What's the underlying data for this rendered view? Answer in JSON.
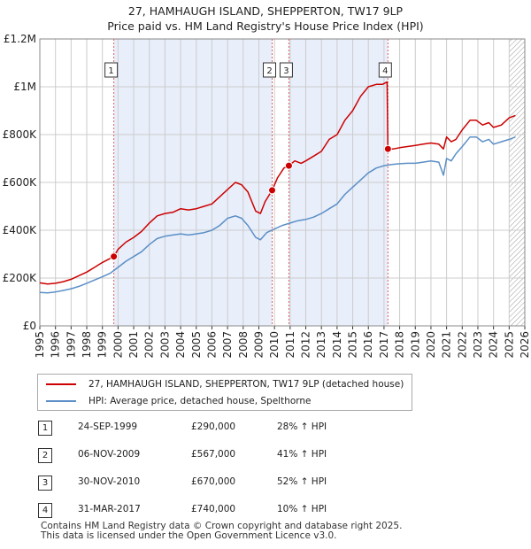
{
  "chart_data": {
    "type": "line",
    "title": "27, HAMHAUGH ISLAND, SHEPPERTON, TW17 9LP",
    "subtitle": "Price paid vs. HM Land Registry's House Price Index (HPI)",
    "xlabel": "",
    "ylabel": "",
    "xlim": [
      1995,
      2026
    ],
    "ylim": [
      0,
      1200000
    ],
    "y_ticks": [
      {
        "value": 0,
        "label": "£0"
      },
      {
        "value": 200000,
        "label": "£200K"
      },
      {
        "value": 400000,
        "label": "£400K"
      },
      {
        "value": 600000,
        "label": "£600K"
      },
      {
        "value": 800000,
        "label": "£800K"
      },
      {
        "value": 1000000,
        "label": "£1M"
      },
      {
        "value": 1200000,
        "label": "£1.2M"
      }
    ],
    "x_ticks": [
      "1995",
      "1996",
      "1997",
      "1998",
      "1999",
      "2000",
      "2001",
      "2002",
      "2003",
      "2004",
      "2005",
      "2006",
      "2007",
      "2008",
      "2009",
      "2010",
      "2011",
      "2012",
      "2013",
      "2014",
      "2015",
      "2016",
      "2017",
      "2018",
      "2019",
      "2020",
      "2021",
      "2022",
      "2023",
      "2024",
      "2025",
      "2026"
    ],
    "shaded_periods": [
      [
        1999.73,
        2009.85
      ],
      [
        2010.92,
        2017.25
      ]
    ],
    "hatch_start": 2025.0,
    "series": [
      {
        "name": "27, HAMHAUGH ISLAND, SHEPPERTON, TW17 9LP (detached house)",
        "color": "#cc0000",
        "x": [
          1995.0,
          1995.5,
          1996.0,
          1996.5,
          1997.0,
          1997.5,
          1998.0,
          1998.5,
          1999.0,
          1999.73,
          2000.0,
          2000.5,
          2001.0,
          2001.5,
          2002.0,
          2002.5,
          2003.0,
          2003.5,
          2004.0,
          2004.5,
          2005.0,
          2005.5,
          2006.0,
          2006.5,
          2007.0,
          2007.5,
          2007.9,
          2008.3,
          2008.8,
          2009.1,
          2009.4,
          2009.85,
          2010.2,
          2010.6,
          2010.92,
          2011.3,
          2011.7,
          2012.0,
          2012.5,
          2013.0,
          2013.5,
          2014.0,
          2014.5,
          2015.0,
          2015.5,
          2016.0,
          2016.5,
          2016.9,
          2017.2,
          2017.25,
          2017.6,
          2018.0,
          2018.5,
          2019.0,
          2019.5,
          2020.0,
          2020.5,
          2020.8,
          2021.0,
          2021.3,
          2021.6,
          2022.0,
          2022.5,
          2022.9,
          2023.3,
          2023.7,
          2024.0,
          2024.5,
          2025.0,
          2025.4
        ],
        "values": [
          180000,
          175000,
          178000,
          185000,
          195000,
          210000,
          225000,
          245000,
          265000,
          290000,
          320000,
          350000,
          370000,
          395000,
          430000,
          460000,
          470000,
          475000,
          490000,
          485000,
          490000,
          500000,
          510000,
          540000,
          570000,
          600000,
          590000,
          560000,
          480000,
          470000,
          520000,
          567000,
          620000,
          660000,
          670000,
          690000,
          680000,
          690000,
          710000,
          730000,
          780000,
          800000,
          860000,
          900000,
          960000,
          1000000,
          1010000,
          1010000,
          1020000,
          740000,
          740000,
          745000,
          750000,
          755000,
          760000,
          765000,
          760000,
          740000,
          790000,
          770000,
          780000,
          820000,
          860000,
          860000,
          840000,
          850000,
          830000,
          840000,
          870000,
          880000
        ]
      },
      {
        "name": "HPI: Average price, detached house, Spelthorne",
        "color": "#5b8fc7",
        "x": [
          1995.0,
          1995.5,
          1996.0,
          1996.5,
          1997.0,
          1997.5,
          1998.0,
          1998.5,
          1999.0,
          1999.5,
          2000.0,
          2000.5,
          2001.0,
          2001.5,
          2002.0,
          2002.5,
          2003.0,
          2003.5,
          2004.0,
          2004.5,
          2005.0,
          2005.5,
          2006.0,
          2006.5,
          2007.0,
          2007.5,
          2007.9,
          2008.3,
          2008.8,
          2009.1,
          2009.5,
          2010.0,
          2010.5,
          2011.0,
          2011.5,
          2012.0,
          2012.5,
          2013.0,
          2013.5,
          2014.0,
          2014.5,
          2015.0,
          2015.5,
          2016.0,
          2016.5,
          2017.0,
          2017.5,
          2018.0,
          2018.5,
          2019.0,
          2019.5,
          2020.0,
          2020.5,
          2020.8,
          2021.0,
          2021.3,
          2021.6,
          2022.0,
          2022.5,
          2022.9,
          2023.3,
          2023.7,
          2024.0,
          2024.5,
          2025.0,
          2025.4
        ],
        "values": [
          140000,
          138000,
          142000,
          148000,
          155000,
          165000,
          178000,
          192000,
          205000,
          220000,
          245000,
          270000,
          290000,
          310000,
          340000,
          365000,
          375000,
          380000,
          385000,
          380000,
          385000,
          390000,
          400000,
          420000,
          450000,
          460000,
          450000,
          420000,
          370000,
          360000,
          390000,
          405000,
          420000,
          430000,
          440000,
          445000,
          455000,
          470000,
          490000,
          510000,
          550000,
          580000,
          610000,
          640000,
          660000,
          670000,
          675000,
          678000,
          680000,
          680000,
          685000,
          690000,
          685000,
          630000,
          700000,
          690000,
          720000,
          750000,
          790000,
          790000,
          770000,
          780000,
          760000,
          770000,
          780000,
          790000
        ]
      }
    ],
    "sales": [
      {
        "num": "1",
        "x": 1999.73,
        "y": 290000
      },
      {
        "num": "2",
        "x": 2009.85,
        "y": 567000
      },
      {
        "num": "3",
        "x": 2010.92,
        "y": 670000
      },
      {
        "num": "4",
        "x": 2017.25,
        "y": 740000
      }
    ]
  },
  "legend": {
    "red_label": "27, HAMHAUGH ISLAND, SHEPPERTON, TW17 9LP (detached house)",
    "blue_label": "HPI: Average price, detached house, Spelthorne"
  },
  "table": [
    {
      "num": "1",
      "date": "24-SEP-1999",
      "price": "£290,000",
      "hpi": "28% ↑ HPI"
    },
    {
      "num": "2",
      "date": "06-NOV-2009",
      "price": "£567,000",
      "hpi": "41% ↑ HPI"
    },
    {
      "num": "3",
      "date": "30-NOV-2010",
      "price": "£670,000",
      "hpi": "52% ↑ HPI"
    },
    {
      "num": "4",
      "date": "31-MAR-2017",
      "price": "£740,000",
      "hpi": "10% ↑ HPI"
    }
  ],
  "footer": {
    "line1": "Contains HM Land Registry data © Crown copyright and database right 2025.",
    "line2": "This data is licensed under the Open Government Licence v3.0."
  }
}
